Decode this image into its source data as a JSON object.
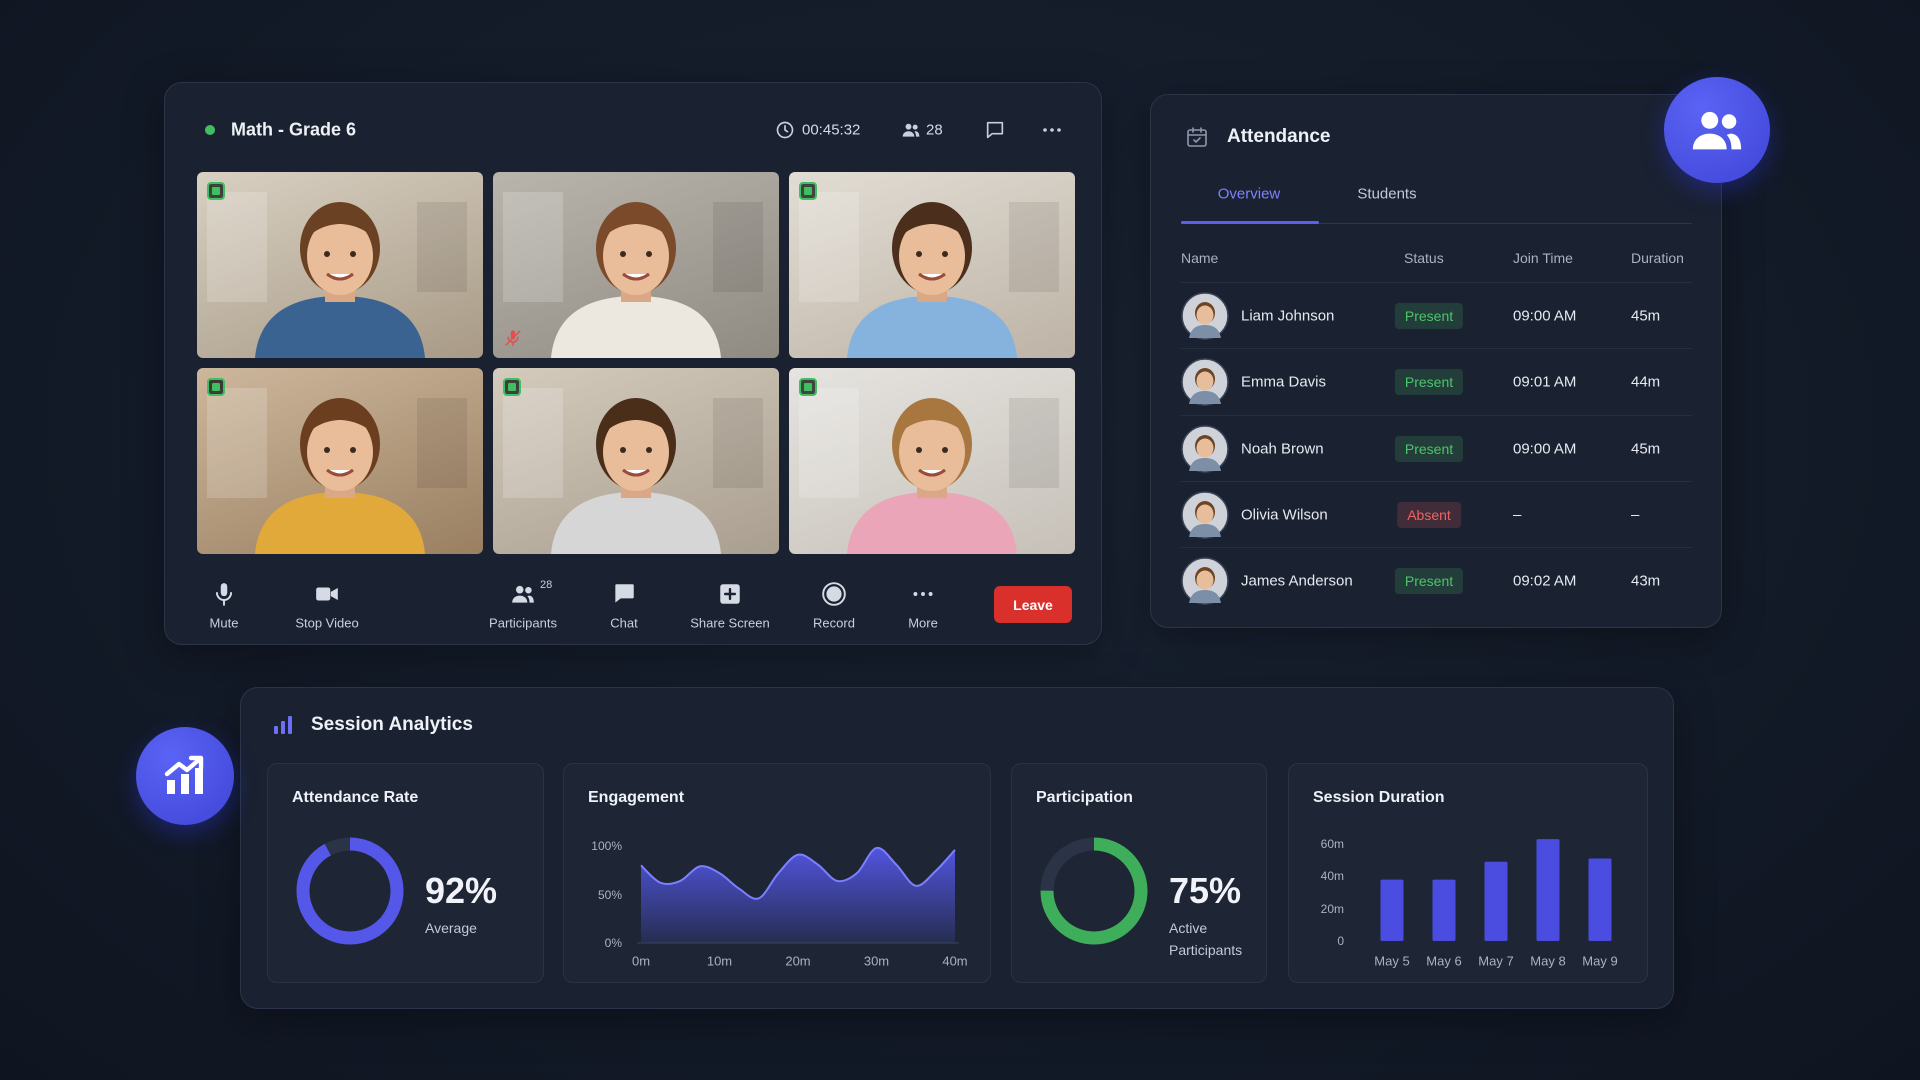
{
  "video": {
    "title": "Math - Grade 6",
    "timer": "00:45:32",
    "participants": 28,
    "controls": [
      {
        "label": "Mute"
      },
      {
        "label": "Stop Video"
      },
      {
        "label": "Participants",
        "badge": 28
      },
      {
        "label": "Chat"
      },
      {
        "label": "Share Screen"
      },
      {
        "label": "Record"
      },
      {
        "label": "More"
      }
    ],
    "leave": "Leave"
  },
  "attendance": {
    "title": "Attendance",
    "tabs": [
      "Overview",
      "Students"
    ],
    "columns": [
      "Name",
      "Status",
      "Join Time",
      "Duration"
    ],
    "rows": [
      {
        "name": "Liam Johnson",
        "status": "Present",
        "status_color": "#4cc46a",
        "join": "09:00 AM",
        "duration": "45m"
      },
      {
        "name": "Emma Davis",
        "status": "Present",
        "status_color": "#4cc46a",
        "join": "09:01 AM",
        "duration": "44m"
      },
      {
        "name": "Noah Brown",
        "status": "Present",
        "status_color": "#4cc46a",
        "join": "09:00 AM",
        "duration": "45m"
      },
      {
        "name": "Olivia Wilson",
        "status": "Absent",
        "status_color": "#f06262",
        "join": "–",
        "duration": "–"
      },
      {
        "name": "James Anderson",
        "status": "Present",
        "status_color": "#4cc46a",
        "join": "09:02 AM",
        "duration": "43m"
      }
    ]
  },
  "analytics": {
    "title": "Session Analytics"
  },
  "chart_data": [
    {
      "type": "donut",
      "title": "Attendance Rate",
      "values": [
        92
      ],
      "value_labels": [
        "92%"
      ],
      "caption": "Average",
      "color": "#5457e8"
    },
    {
      "type": "area",
      "title": "Engagement",
      "x": [
        0,
        2.5,
        5,
        7.5,
        10,
        12.5,
        15,
        17.5,
        20,
        22.5,
        25,
        27.5,
        30,
        32.5,
        35,
        37.5,
        40
      ],
      "values": [
        80,
        62,
        64,
        79,
        72,
        56,
        46,
        72,
        91,
        81,
        64,
        72,
        98,
        81,
        59,
        74,
        96
      ],
      "color": "#5457e8",
      "xlim": [
        0,
        40
      ],
      "xticks": [
        {
          "value": 0,
          "label": "0m"
        },
        {
          "value": 10,
          "label": "10m"
        },
        {
          "value": 20,
          "label": "20m"
        },
        {
          "value": 30,
          "label": "30m"
        },
        {
          "value": 40,
          "label": "40m"
        }
      ],
      "ylim": [
        0,
        100
      ],
      "yticks": [
        {
          "value": 0,
          "label": "0%"
        },
        {
          "value": 50,
          "label": "50%"
        },
        {
          "value": 100,
          "label": "100%"
        }
      ]
    },
    {
      "type": "donut",
      "title": "Participation",
      "values": [
        75
      ],
      "value_labels": [
        "75%"
      ],
      "caption": "Active Participants",
      "color": "#3fae5a"
    },
    {
      "type": "bar",
      "title": "Session Duration",
      "categories": [
        "May 5",
        "May 6",
        "May 7",
        "May 8",
        "May 9"
      ],
      "values": [
        38,
        38,
        49,
        63,
        51
      ],
      "color": "#4a4de0",
      "ylim": [
        0,
        60
      ],
      "yticks": [
        {
          "value": 0,
          "label": "0"
        },
        {
          "value": 20,
          "label": "20m"
        },
        {
          "value": 40,
          "label": "40m"
        },
        {
          "value": 60,
          "label": "60m"
        }
      ]
    }
  ]
}
